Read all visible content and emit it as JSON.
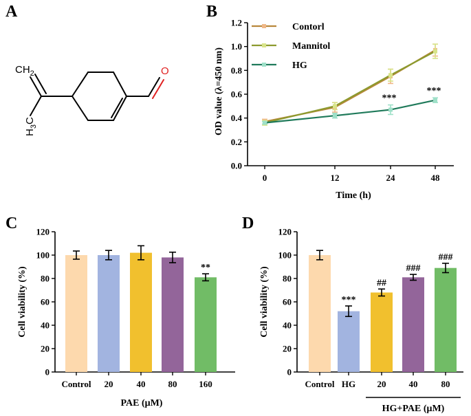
{
  "panels": {
    "a": "A",
    "b": "B",
    "c": "C",
    "d": "D"
  },
  "structure": {
    "ch2_label": "CH",
    "ch2_sub": "2",
    "h3c_label": "H",
    "h3c_sub": "3",
    "h3c_tail": "C",
    "o_label": "O"
  },
  "chart_data": [
    {
      "id": "B",
      "type": "line",
      "x": [
        0,
        12,
        24,
        48
      ],
      "xticks": [
        "0",
        "12",
        "24",
        "48"
      ],
      "xlabel": "Time (h)",
      "ylabel": "OD value (λ=450 nm)",
      "ylim": [
        0,
        1.2
      ],
      "yticks": [
        "0.0",
        "0.2",
        "0.4",
        "0.6",
        "0.8",
        "1.0",
        "1.2"
      ],
      "legend_position": "top-left",
      "series": [
        {
          "name": "Contorl",
          "color": "#b8873a",
          "marker_color": "#f0b888",
          "values": [
            0.37,
            0.49,
            0.75,
            0.97
          ],
          "errors": [
            0.02,
            0.04,
            0.06,
            0.05
          ],
          "annotations": [
            "",
            "",
            "",
            ""
          ]
        },
        {
          "name": "Mannitol",
          "color": "#8c9a2e",
          "marker_color": "#d8e48a",
          "values": [
            0.36,
            0.5,
            0.76,
            0.96
          ],
          "errors": [
            0.02,
            0.03,
            0.05,
            0.06
          ],
          "annotations": [
            "",
            "",
            "",
            ""
          ]
        },
        {
          "name": "HG",
          "color": "#1f7a5a",
          "marker_color": "#9ee0c8",
          "values": [
            0.36,
            0.42,
            0.47,
            0.55
          ],
          "errors": [
            0.01,
            0.02,
            0.04,
            0.02
          ],
          "annotations": [
            "",
            "",
            "***",
            "***"
          ]
        }
      ]
    },
    {
      "id": "C",
      "type": "bar",
      "categories": [
        "Control",
        "20",
        "40",
        "80",
        "160"
      ],
      "values": [
        100,
        100,
        102,
        98,
        81
      ],
      "errors": [
        3.5,
        4,
        6,
        4.5,
        3
      ],
      "annotations": [
        "",
        "",
        "",
        "",
        "**"
      ],
      "colors": [
        "#fdd9ad",
        "#a2b4e0",
        "#f1c02e",
        "#93659a",
        "#71bc66"
      ],
      "xlabel": "PAE (μM)",
      "ylabel": "Cell viability (%)",
      "ylim": [
        0,
        120
      ],
      "yticks": [
        "0",
        "20",
        "40",
        "60",
        "80",
        "100",
        "120"
      ]
    },
    {
      "id": "D",
      "type": "bar",
      "categories": [
        "Control",
        "HG",
        "20",
        "40",
        "80"
      ],
      "values": [
        100,
        52,
        68,
        81,
        89
      ],
      "errors": [
        4,
        4.5,
        3,
        2.5,
        4
      ],
      "annotations": [
        "",
        "***",
        "##",
        "###",
        "###"
      ],
      "colors": [
        "#fdd9ad",
        "#a2b4e0",
        "#f1c02e",
        "#93659a",
        "#71bc66"
      ],
      "group_label": "HG+PAE (μM)",
      "ylabel": "Cell viability (%)",
      "ylim": [
        0,
        120
      ],
      "yticks": [
        "0",
        "20",
        "40",
        "60",
        "80",
        "100",
        "120"
      ]
    }
  ]
}
